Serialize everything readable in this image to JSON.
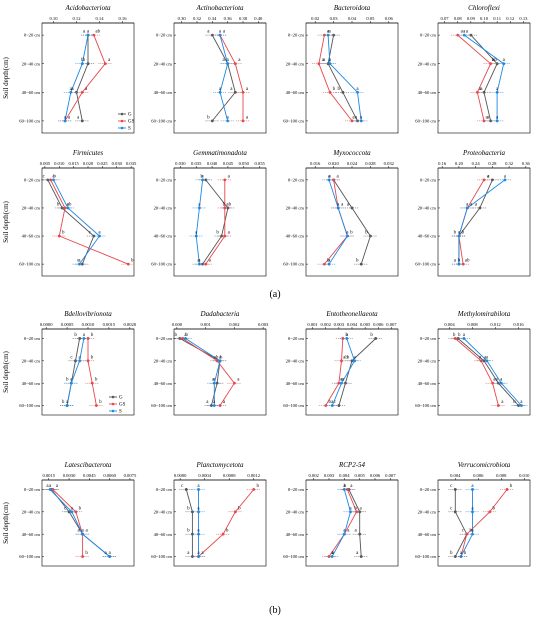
{
  "figure": {
    "panel_labels": [
      "(a)",
      "(b)"
    ],
    "ylabel": "Soil depth(cm)",
    "depths": [
      "0~20 cm",
      "20~40 cm",
      "40~60 cm",
      "60~100 cm"
    ],
    "legend": [
      "G",
      "GS",
      "S"
    ],
    "colors": {
      "G": "#555555",
      "GS": "#e8474b",
      "S": "#1e88e5"
    }
  },
  "chart_data": [
    {
      "type": "line",
      "title": "Acidobacteriota",
      "xticks": [
        "0.10",
        "0.12",
        "0.14",
        "0.16"
      ],
      "xlim": [
        0.09,
        0.17
      ],
      "series": [
        {
          "name": "G",
          "values": [
            0.13,
            0.13,
            0.12,
            0.125
          ]
        },
        {
          "name": "GS",
          "values": [
            0.135,
            0.145,
            0.125,
            0.11
          ]
        },
        {
          "name": "S",
          "values": [
            0.13,
            0.125,
            0.115,
            0.11
          ]
        }
      ],
      "labels": [
        [
          "a",
          "ab",
          "a"
        ],
        [
          "b",
          "a",
          "b"
        ],
        [
          "a",
          "a",
          "a"
        ],
        [
          "a",
          "a",
          "a"
        ]
      ]
    },
    {
      "type": "line",
      "title": "Actinobacteriota",
      "xticks": [
        "0.30",
        "0.32",
        "0.34",
        "0.36",
        "0.38",
        "0.40"
      ],
      "xlim": [
        0.29,
        0.41
      ],
      "series": [
        {
          "name": "G",
          "values": [
            0.34,
            0.36,
            0.37,
            0.34
          ]
        },
        {
          "name": "GS",
          "values": [
            0.35,
            0.37,
            0.38,
            0.38
          ]
        },
        {
          "name": "S",
          "values": [
            0.35,
            0.36,
            0.35,
            0.36
          ]
        }
      ],
      "labels": [
        [
          "a",
          "a",
          "a"
        ],
        [
          "a",
          "a",
          "a"
        ],
        [
          "a",
          "a",
          "a"
        ],
        [
          "b",
          "a",
          "a"
        ]
      ]
    },
    {
      "type": "line",
      "title": "Bacteroidota",
      "xticks": [
        "0.02",
        "0.03",
        "0.04",
        "0.05",
        "0.06"
      ],
      "xlim": [
        0.015,
        0.065
      ],
      "series": [
        {
          "name": "G",
          "values": [
            0.03,
            0.027,
            0.035,
            0.043
          ]
        },
        {
          "name": "GS",
          "values": [
            0.025,
            0.022,
            0.028,
            0.04
          ]
        },
        {
          "name": "S",
          "values": [
            0.027,
            0.028,
            0.043,
            0.045
          ]
        }
      ],
      "labels": [
        [
          "a",
          "a",
          "a"
        ],
        [
          "a",
          "a",
          "a"
        ],
        [
          "b",
          "b",
          "a"
        ],
        [
          "a",
          "a",
          "a"
        ]
      ]
    },
    {
      "type": "line",
      "title": "Chloroflexi",
      "xticks": [
        "0.07",
        "0.08",
        "0.09",
        "0.10",
        "0.11",
        "0.12",
        "0.13"
      ],
      "xlim": [
        0.065,
        0.135
      ],
      "series": [
        {
          "name": "G",
          "values": [
            0.09,
            0.11,
            0.1,
            0.105
          ]
        },
        {
          "name": "GS",
          "values": [
            0.08,
            0.105,
            0.095,
            0.1
          ]
        },
        {
          "name": "S",
          "values": [
            0.085,
            0.115,
            0.11,
            0.11
          ]
        }
      ],
      "labels": [
        [
          "a",
          "a",
          "a"
        ],
        [
          "b",
          "ab",
          "a"
        ],
        [
          "a",
          "a",
          "a"
        ],
        [
          "a",
          "a",
          "a"
        ]
      ]
    },
    {
      "type": "line",
      "title": "Firmicutes",
      "xticks": [
        "0.005",
        "0.010",
        "0.015",
        "0.020",
        "0.025",
        "0.030",
        "0.035"
      ],
      "xlim": [
        0.004,
        0.036
      ],
      "series": [
        {
          "name": "G",
          "values": [
            0.006,
            0.011,
            0.022,
            0.018
          ]
        },
        {
          "name": "GS",
          "values": [
            0.007,
            0.012,
            0.01,
            0.034
          ]
        },
        {
          "name": "S",
          "values": [
            0.008,
            0.013,
            0.024,
            0.017
          ]
        }
      ],
      "labels": [
        [
          "c",
          "b",
          "a"
        ],
        [
          "b",
          "ab",
          "a"
        ],
        [
          "c",
          "b",
          "a"
        ],
        [
          "c",
          "b",
          "a"
        ]
      ]
    },
    {
      "type": "line",
      "title": "Gemmatimonadota",
      "xticks": [
        "0.030",
        "0.035",
        "0.040",
        "0.045",
        "0.050",
        "0.055"
      ],
      "xlim": [
        0.028,
        0.057
      ],
      "series": [
        {
          "name": "G",
          "values": [
            0.038,
            0.045,
            0.043,
            0.037
          ]
        },
        {
          "name": "GS",
          "values": [
            0.044,
            0.044,
            0.044,
            0.038
          ]
        },
        {
          "name": "S",
          "values": [
            0.037,
            0.036,
            0.035,
            0.036
          ]
        }
      ],
      "labels": [
        [
          "b",
          "a",
          "a"
        ],
        [
          "b",
          "ab",
          "a"
        ],
        [
          "b",
          "a",
          "a"
        ],
        [
          "a",
          "a",
          "a"
        ]
      ]
    },
    {
      "type": "line",
      "title": "Myxococcota",
      "xticks": [
        "0.016",
        "0.020",
        "0.024",
        "0.028",
        "0.032"
      ],
      "xlim": [
        0.014,
        0.034
      ],
      "series": [
        {
          "name": "G",
          "values": [
            0.02,
            0.024,
            0.028,
            0.026
          ]
        },
        {
          "name": "GS",
          "values": [
            0.02,
            0.021,
            0.023,
            0.018
          ]
        },
        {
          "name": "S",
          "values": [
            0.019,
            0.021,
            0.023,
            0.019
          ]
        }
      ],
      "labels": [
        [
          "a",
          "a",
          "a"
        ],
        [
          "a",
          "a",
          "a"
        ],
        [
          "b",
          "b",
          "a"
        ],
        [
          "b",
          "b",
          "a"
        ]
      ]
    },
    {
      "type": "line",
      "title": "Proteobacteria",
      "xticks": [
        "0.16",
        "0.20",
        "0.24",
        "0.28",
        "0.32",
        "0.36"
      ],
      "xlim": [
        0.15,
        0.37
      ],
      "series": [
        {
          "name": "G",
          "values": [
            0.28,
            0.25,
            0.2,
            0.2
          ]
        },
        {
          "name": "GS",
          "values": [
            0.26,
            0.22,
            0.2,
            0.21
          ]
        },
        {
          "name": "S",
          "values": [
            0.31,
            0.22,
            0.2,
            0.2
          ]
        }
      ],
      "labels": [
        [
          "a",
          "a",
          "a"
        ],
        [
          "a",
          "a",
          "a"
        ],
        [
          "b",
          "b",
          "a"
        ],
        [
          "a",
          "ab",
          "b"
        ]
      ]
    },
    {
      "type": "line",
      "title": "Bdellovibrionota",
      "xticks": [
        "0.0000",
        "0.0005",
        "0.0010",
        "0.0015",
        "0.0020"
      ],
      "xlim": [
        -0.0001,
        0.0021
      ],
      "series": [
        {
          "name": "G",
          "values": [
            0.0008,
            0.0007,
            0.0006,
            0.0005
          ]
        },
        {
          "name": "GS",
          "values": [
            0.001,
            0.001,
            0.0011,
            0.0012
          ]
        },
        {
          "name": "S",
          "values": [
            0.0009,
            0.0008,
            0.0006,
            0.0005
          ]
        }
      ],
      "labels": [
        [
          "b",
          "b",
          "a"
        ],
        [
          "c",
          "b",
          "a"
        ],
        [
          "b",
          "b",
          "a"
        ],
        [
          "b",
          "b",
          "a"
        ]
      ]
    },
    {
      "type": "line",
      "title": "Dadabacteria",
      "xticks": [
        "0.000",
        "0.001",
        "0.002",
        "0.003"
      ],
      "xlim": [
        -0.0001,
        0.0031
      ],
      "series": [
        {
          "name": "G",
          "values": [
            0.0001,
            0.0015,
            0.0014,
            0.0012
          ]
        },
        {
          "name": "GS",
          "values": [
            0.0002,
            0.0014,
            0.002,
            0.0015
          ]
        },
        {
          "name": "S",
          "values": [
            0.0003,
            0.0015,
            0.0013,
            0.0013
          ]
        }
      ],
      "labels": [
        [
          "b",
          "b",
          "a"
        ],
        [
          "ab",
          "b",
          "a"
        ],
        [
          "a",
          "a",
          "a"
        ],
        [
          "a",
          "a",
          "a"
        ]
      ]
    },
    {
      "type": "line",
      "title": "Entotheonellaeota",
      "xticks": [
        "0.001",
        "0.002",
        "0.003",
        "0.004",
        "0.005",
        "0.006",
        "0.007"
      ],
      "xlim": [
        0.0005,
        0.0075
      ],
      "series": [
        {
          "name": "G",
          "values": [
            0.0058,
            0.004,
            0.0035,
            0.003
          ]
        },
        {
          "name": "GS",
          "values": [
            0.0033,
            0.0032,
            0.003,
            0.002
          ]
        },
        {
          "name": "S",
          "values": [
            0.0036,
            0.0042,
            0.0032,
            0.0025
          ]
        }
      ],
      "labels": [
        [
          "b",
          "b",
          "a"
        ],
        [
          "b",
          "ab",
          "a"
        ],
        [
          "a",
          "a",
          "a"
        ],
        [
          "c",
          "b",
          "a"
        ]
      ]
    },
    {
      "type": "line",
      "title": "Methylomirabilota",
      "xticks": [
        "0.004",
        "0.008",
        "0.012",
        "0.016"
      ],
      "xlim": [
        0.002,
        0.018
      ],
      "series": [
        {
          "name": "G",
          "values": [
            0.0055,
            0.01,
            0.0125,
            0.016
          ]
        },
        {
          "name": "GS",
          "values": [
            0.005,
            0.0095,
            0.0115,
            0.0125
          ]
        },
        {
          "name": "S",
          "values": [
            0.0065,
            0.0105,
            0.013,
            0.0165
          ]
        }
      ],
      "labels": [
        [
          "b",
          "b",
          "a"
        ],
        [
          "a",
          "a",
          "a"
        ],
        [
          "a",
          "a",
          "a"
        ],
        [
          "b",
          "a",
          "a"
        ]
      ]
    },
    {
      "type": "line",
      "title": "Latescibacterota",
      "xticks": [
        "0.0015",
        "0.0030",
        "0.0045",
        "0.0060",
        "0.0075"
      ],
      "xlim": [
        0.001,
        0.0078
      ],
      "series": [
        {
          "name": "G",
          "values": [
            0.0017,
            0.003,
            0.004,
            0.006
          ]
        },
        {
          "name": "GS",
          "values": [
            0.0018,
            0.0035,
            0.004,
            0.004
          ]
        },
        {
          "name": "S",
          "values": [
            0.0016,
            0.0032,
            0.004,
            0.006
          ]
        }
      ],
      "labels": [
        [
          "a",
          "a",
          "a"
        ],
        [
          "c",
          "b",
          "a"
        ],
        [
          "a",
          "a",
          "a"
        ],
        [
          "a",
          "b",
          "a"
        ]
      ]
    },
    {
      "type": "line",
      "title": "Planctomycetota",
      "xticks": [
        "0.0000",
        "0.0004",
        "0.0008",
        "0.0012"
      ],
      "xlim": [
        -0.0001,
        0.0014
      ],
      "series": [
        {
          "name": "G",
          "values": [
            0.0001,
            0.0002,
            0.0002,
            0.0002
          ]
        },
        {
          "name": "GS",
          "values": [
            0.0012,
            0.0009,
            0.0007,
            0.0003
          ]
        },
        {
          "name": "S",
          "values": [
            0.0003,
            0.0003,
            0.0003,
            0.0003
          ]
        }
      ],
      "labels": [
        [
          "c",
          "b",
          "a"
        ],
        [
          "b",
          "b",
          "a"
        ],
        [
          "b",
          "b",
          "a"
        ],
        [
          "a",
          "a",
          "a"
        ]
      ]
    },
    {
      "type": "line",
      "title": "RCP2-54",
      "xticks": [
        "0.002",
        "0.003",
        "0.004",
        "0.005",
        "0.006",
        "0.007"
      ],
      "xlim": [
        0.0015,
        0.0075
      ],
      "series": [
        {
          "name": "G",
          "values": [
            0.0043,
            0.005,
            0.005,
            0.0051
          ]
        },
        {
          "name": "GS",
          "values": [
            0.0042,
            0.0048,
            0.004,
            0.003
          ]
        },
        {
          "name": "S",
          "values": [
            0.004,
            0.0044,
            0.004,
            0.0032
          ]
        }
      ],
      "labels": [
        [
          "b",
          "a",
          "a"
        ],
        [
          "b",
          "a",
          "a"
        ],
        [
          "a",
          "a",
          "a"
        ],
        [
          "a",
          "a",
          "a"
        ]
      ]
    },
    {
      "type": "line",
      "title": "Verrucomicrobiota",
      "xticks": [
        "0.004",
        "0.006",
        "0.008",
        "0.010"
      ],
      "xlim": [
        0.0025,
        0.0105
      ],
      "series": [
        {
          "name": "G",
          "values": [
            0.004,
            0.004,
            0.005,
            0.004
          ]
        },
        {
          "name": "GS",
          "values": [
            0.0085,
            0.007,
            0.005,
            0.0045
          ]
        },
        {
          "name": "S",
          "values": [
            0.0055,
            0.0055,
            0.0055,
            0.0045
          ]
        }
      ],
      "labels": [
        [
          "c",
          "b",
          "a"
        ],
        [
          "c",
          "b",
          "a"
        ],
        [
          "c",
          "b",
          "a"
        ],
        [
          "b",
          "b",
          "a"
        ]
      ]
    }
  ]
}
